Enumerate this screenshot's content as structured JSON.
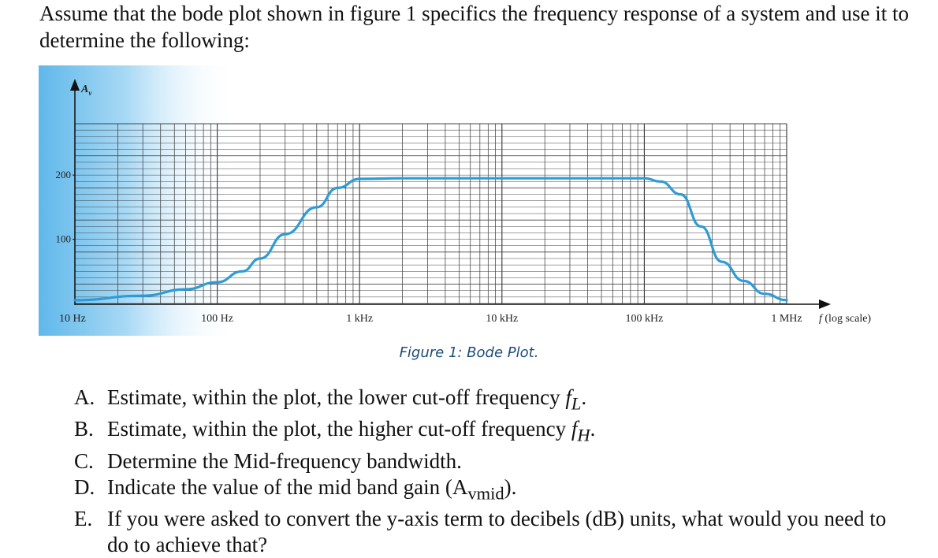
{
  "intro_text": "Assume that the bode plot shown in figure 1 specifics the frequency response of a system and use it to determine the following:",
  "caption": "Figure 1: Bode Plot.",
  "chart_data": {
    "type": "line",
    "ylabel": "A_v",
    "xlabel": "f (log scale)",
    "x_scale": "log",
    "x_ticks": [
      {
        "value": 10,
        "label": "10 Hz"
      },
      {
        "value": 100,
        "label": "100 Hz"
      },
      {
        "value": 1000,
        "label": "1 kHz"
      },
      {
        "value": 10000,
        "label": "10 kHz"
      },
      {
        "value": 100000,
        "label": "100 kHz"
      },
      {
        "value": 1000000,
        "label": "1 MHz"
      }
    ],
    "y_ticks": [
      100,
      200
    ],
    "xlim": [
      10,
      1000000
    ],
    "ylim": [
      0,
      280
    ],
    "grid": true,
    "series": [
      {
        "color": "#2e9bd6",
        "x": [
          10,
          30,
          60,
          100,
          150,
          200,
          300,
          500,
          700,
          1000,
          2000,
          5000,
          10000,
          30000,
          60000,
          100000,
          130000,
          180000,
          250000,
          350000,
          500000,
          700000,
          1000000
        ],
        "y": [
          5,
          12,
          22,
          33,
          50,
          70,
          108,
          150,
          180,
          194,
          195,
          195,
          195,
          195,
          195,
          195,
          190,
          170,
          120,
          65,
          35,
          15,
          5
        ]
      }
    ]
  },
  "questions": [
    {
      "letter": "A.",
      "text": "Estimate, within the plot, the lower cut-off frequency",
      "var": "f",
      "sub": "L",
      "end": "."
    },
    {
      "letter": "B.",
      "text": "Estimate, within the plot, the higher cut-off frequency",
      "var": "f",
      "sub": "H",
      "end": "."
    },
    {
      "letter": "C.",
      "text": "Determine the Mid-frequency bandwidth."
    },
    {
      "letter": "D.",
      "text": "Indicate the value of the mid band gain (A",
      "sub": "vmid",
      "end": ")."
    },
    {
      "letter": "E.",
      "text": "If you were asked to convert the y-axis term to decibels (dB) units, what would you need to do to achieve that?"
    }
  ]
}
